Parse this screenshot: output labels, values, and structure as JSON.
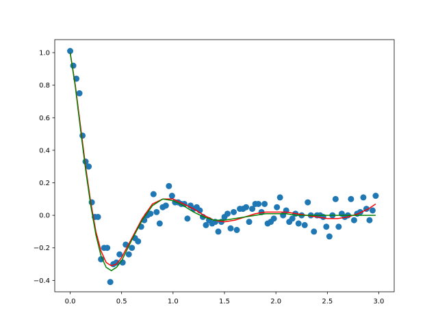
{
  "chart_data": {
    "type": "scatter",
    "title": "",
    "xlabel": "",
    "ylabel": "",
    "xlim": [
      -0.15,
      3.15
    ],
    "ylim": [
      -0.47,
      1.08
    ],
    "grid": false,
    "legend": "none",
    "x_ticks": [
      0.0,
      0.5,
      1.0,
      1.5,
      2.0,
      2.5,
      3.0
    ],
    "x_tick_labels": [
      "0.0",
      "0.5",
      "1.0",
      "1.5",
      "2.0",
      "2.5",
      "3.0"
    ],
    "y_ticks": [
      -0.4,
      -0.2,
      0.0,
      0.2,
      0.4,
      0.6,
      0.8,
      1.0
    ],
    "y_tick_labels": [
      "−0.4",
      "−0.2",
      "0.0",
      "0.2",
      "0.4",
      "0.6",
      "0.8",
      "1.0"
    ],
    "colors": {
      "scatter": "#1f77b4",
      "fit_red": "#ff0000",
      "fit_green": "#008000"
    },
    "series": [
      {
        "type": "scatter",
        "x": [
          0.0,
          0.03,
          0.06,
          0.09,
          0.12,
          0.15,
          0.18,
          0.21,
          0.24,
          0.27,
          0.3,
          0.33,
          0.36,
          0.39,
          0.42,
          0.45,
          0.48,
          0.51,
          0.54,
          0.57,
          0.6,
          0.63,
          0.66,
          0.69,
          0.72,
          0.75,
          0.78,
          0.81,
          0.84,
          0.87,
          0.9,
          0.93,
          0.96,
          0.99,
          1.02,
          1.05,
          1.08,
          1.11,
          1.14,
          1.17,
          1.2,
          1.23,
          1.26,
          1.29,
          1.32,
          1.35,
          1.38,
          1.41,
          1.44,
          1.47,
          1.5,
          1.53,
          1.56,
          1.59,
          1.62,
          1.65,
          1.68,
          1.71,
          1.74,
          1.77,
          1.8,
          1.83,
          1.86,
          1.89,
          1.92,
          1.95,
          1.98,
          2.01,
          2.04,
          2.07,
          2.1,
          2.13,
          2.16,
          2.19,
          2.22,
          2.25,
          2.28,
          2.31,
          2.34,
          2.37,
          2.4,
          2.43,
          2.46,
          2.49,
          2.52,
          2.55,
          2.58,
          2.61,
          2.64,
          2.67,
          2.7,
          2.73,
          2.76,
          2.79,
          2.82,
          2.85,
          2.88,
          2.91,
          2.94,
          2.97
        ],
        "y": [
          1.01,
          0.92,
          0.84,
          0.75,
          0.49,
          0.33,
          0.3,
          0.08,
          -0.01,
          -0.01,
          -0.27,
          -0.2,
          -0.2,
          -0.41,
          -0.3,
          -0.29,
          -0.24,
          -0.29,
          -0.18,
          -0.24,
          -0.2,
          -0.14,
          -0.16,
          -0.07,
          -0.03,
          0.0,
          0.01,
          0.13,
          0.02,
          -0.05,
          0.05,
          0.06,
          0.18,
          0.12,
          0.08,
          0.08,
          0.07,
          0.07,
          -0.02,
          0.06,
          0.04,
          0.05,
          0.03,
          -0.01,
          -0.06,
          -0.03,
          -0.05,
          -0.04,
          -0.1,
          -0.04,
          -0.01,
          0.01,
          -0.08,
          0.02,
          -0.09,
          0.04,
          0.04,
          0.05,
          -0.04,
          0.04,
          0.07,
          0.07,
          0.02,
          0.07,
          -0.05,
          -0.04,
          -0.02,
          0.05,
          0.11,
          0.0,
          0.03,
          -0.04,
          -0.02,
          0.01,
          -0.05,
          0.0,
          -0.06,
          0.08,
          0.0,
          -0.1,
          0.0,
          0.0,
          -0.01,
          -0.07,
          -0.13,
          0.0,
          0.1,
          -0.07,
          0.01,
          -0.01,
          0.0,
          0.1,
          -0.03,
          0.01,
          0.02,
          0.11,
          0.04,
          -0.03,
          0.03,
          0.12
        ]
      },
      {
        "type": "line",
        "x": [
          0.0,
          0.05,
          0.1,
          0.15,
          0.2,
          0.25,
          0.3,
          0.35,
          0.4,
          0.45,
          0.5,
          0.6,
          0.7,
          0.8,
          0.9,
          1.0,
          1.1,
          1.2,
          1.3,
          1.4,
          1.5,
          1.6,
          1.7,
          1.8,
          1.9,
          2.0,
          2.1,
          2.2,
          2.3,
          2.4,
          2.5,
          2.6,
          2.7,
          2.8,
          2.9,
          2.97
        ],
        "y": [
          1.0,
          0.8,
          0.55,
          0.3,
          0.08,
          -0.1,
          -0.22,
          -0.29,
          -0.31,
          -0.3,
          -0.26,
          -0.14,
          -0.02,
          0.07,
          0.1,
          0.1,
          0.07,
          0.04,
          0.0,
          -0.03,
          -0.04,
          -0.03,
          -0.01,
          0.01,
          0.02,
          0.02,
          0.02,
          0.01,
          0.0,
          -0.01,
          -0.02,
          -0.02,
          -0.01,
          0.01,
          0.04,
          0.07
        ]
      },
      {
        "type": "line",
        "x": [
          0.0,
          0.05,
          0.1,
          0.15,
          0.2,
          0.25,
          0.3,
          0.35,
          0.4,
          0.45,
          0.5,
          0.6,
          0.7,
          0.8,
          0.9,
          1.0,
          1.1,
          1.2,
          1.3,
          1.4,
          1.5,
          1.6,
          1.7,
          1.8,
          1.9,
          2.0,
          2.1,
          2.2,
          2.3,
          2.4,
          2.5,
          2.6,
          2.7,
          2.8,
          2.9,
          2.97
        ],
        "y": [
          1.0,
          0.79,
          0.53,
          0.28,
          0.06,
          -0.12,
          -0.25,
          -0.32,
          -0.34,
          -0.32,
          -0.28,
          -0.15,
          -0.03,
          0.06,
          0.1,
          0.09,
          0.06,
          0.02,
          -0.01,
          -0.03,
          -0.03,
          -0.02,
          -0.01,
          0.0,
          0.01,
          0.01,
          0.01,
          0.0,
          0.0,
          0.0,
          0.0,
          0.0,
          0.0,
          0.0,
          0.0,
          0.0
        ]
      }
    ]
  }
}
